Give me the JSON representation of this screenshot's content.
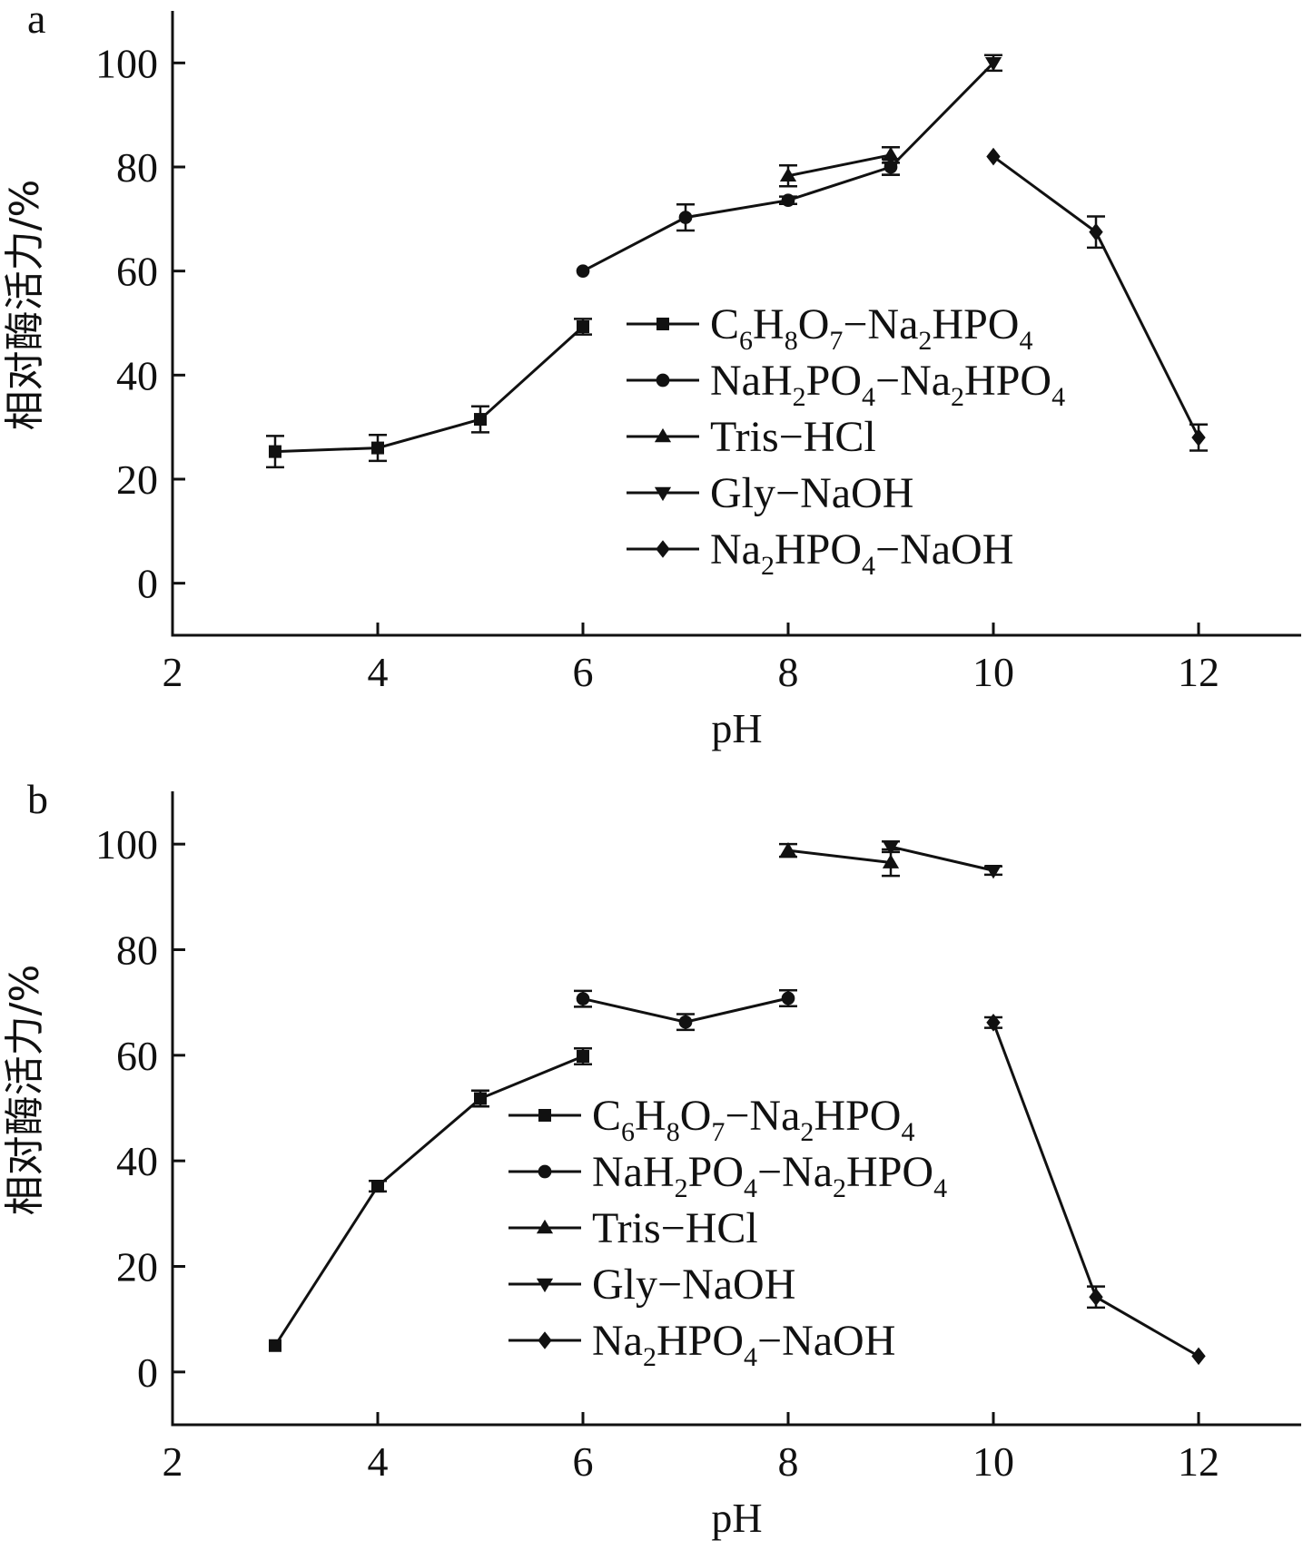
{
  "chart_data": [
    {
      "type": "line",
      "panel_label": "a",
      "xlabel": "pH",
      "ylabel": "相对酶活力/%",
      "xlim": [
        2,
        13
      ],
      "ylim": [
        -10,
        110
      ],
      "xticks": [
        2,
        4,
        6,
        8,
        10,
        12
      ],
      "yticks": [
        0,
        20,
        40,
        60,
        80,
        100
      ],
      "legend_position": "center",
      "series": [
        {
          "name": "C6H8O7-Na2HPO4",
          "label_parts": [
            [
              "C",
              ""
            ],
            [
              "6",
              "sub"
            ],
            [
              "H",
              ""
            ],
            [
              "8",
              "sub"
            ],
            [
              "O",
              ""
            ],
            [
              "7",
              "sub"
            ],
            [
              "−Na",
              ""
            ],
            [
              "2",
              "sub"
            ],
            [
              "HPO",
              ""
            ],
            [
              "4",
              "sub"
            ]
          ],
          "marker": "square",
          "points": [
            {
              "x": 3,
              "y": 25.3,
              "err": 3
            },
            {
              "x": 4,
              "y": 26,
              "err": 2.5
            },
            {
              "x": 5,
              "y": 31.5,
              "err": 2.5
            },
            {
              "x": 6,
              "y": 49.3,
              "err": 1.5
            }
          ]
        },
        {
          "name": "NaH2PO4-Na2HPO4",
          "label_parts": [
            [
              "NaH",
              ""
            ],
            [
              "2",
              "sub"
            ],
            [
              "PO",
              ""
            ],
            [
              "4",
              "sub"
            ],
            [
              "−Na",
              ""
            ],
            [
              "2",
              "sub"
            ],
            [
              "HPO",
              ""
            ],
            [
              "4",
              "sub"
            ]
          ],
          "marker": "circle",
          "points": [
            {
              "x": 6,
              "y": 60,
              "err": 0.5
            },
            {
              "x": 7,
              "y": 70.3,
              "err": 2.5
            },
            {
              "x": 8,
              "y": 73.6,
              "err": 0.7
            },
            {
              "x": 9,
              "y": 80,
              "err": 1.5
            }
          ]
        },
        {
          "name": "Tris-HCl",
          "label_parts": [
            [
              "Tris−HCl",
              ""
            ]
          ],
          "marker": "triangle-up",
          "points": [
            {
              "x": 8,
              "y": 78.3,
              "err": 2
            },
            {
              "x": 9,
              "y": 82.3,
              "err": 1.5
            }
          ]
        },
        {
          "name": "Gly-NaOH",
          "label_parts": [
            [
              "Gly−NaOH",
              ""
            ]
          ],
          "marker": "triangle-down",
          "points": [
            {
              "x": 9,
              "y": 80,
              "err": 1.5
            },
            {
              "x": 10,
              "y": 100,
              "err": 1.5
            }
          ]
        },
        {
          "name": "Na2HPO4-NaOH",
          "label_parts": [
            [
              "Na",
              ""
            ],
            [
              "2",
              "sub"
            ],
            [
              "HPO",
              ""
            ],
            [
              "4",
              "sub"
            ],
            [
              "−NaOH",
              ""
            ]
          ],
          "marker": "diamond",
          "points": [
            {
              "x": 10,
              "y": 82,
              "err": 0.5
            },
            {
              "x": 11,
              "y": 67.5,
              "err": 3
            },
            {
              "x": 12,
              "y": 28,
              "err": 2.5
            }
          ]
        }
      ]
    },
    {
      "type": "line",
      "panel_label": "b",
      "xlabel": "pH",
      "ylabel": "相对酶活力/%",
      "xlim": [
        2,
        13
      ],
      "ylim": [
        -10,
        110
      ],
      "xticks": [
        2,
        4,
        6,
        8,
        10,
        12
      ],
      "yticks": [
        0,
        20,
        40,
        60,
        80,
        100
      ],
      "legend_position": "center-left",
      "series": [
        {
          "name": "C6H8O7-Na2HPO4",
          "label_parts": [
            [
              "C",
              ""
            ],
            [
              "6",
              "sub"
            ],
            [
              "H",
              ""
            ],
            [
              "8",
              "sub"
            ],
            [
              "O",
              ""
            ],
            [
              "7",
              "sub"
            ],
            [
              "−Na",
              ""
            ],
            [
              "2",
              "sub"
            ],
            [
              "HPO",
              ""
            ],
            [
              "4",
              "sub"
            ]
          ],
          "marker": "square",
          "points": [
            {
              "x": 3,
              "y": 5,
              "err": 0.5
            },
            {
              "x": 4,
              "y": 35.2,
              "err": 1
            },
            {
              "x": 5,
              "y": 51.8,
              "err": 1.5
            },
            {
              "x": 6,
              "y": 59.8,
              "err": 1.5
            }
          ]
        },
        {
          "name": "NaH2PO4-Na2HPO4",
          "label_parts": [
            [
              "NaH",
              ""
            ],
            [
              "2",
              "sub"
            ],
            [
              "PO",
              ""
            ],
            [
              "4",
              "sub"
            ],
            [
              "−Na",
              ""
            ],
            [
              "2",
              "sub"
            ],
            [
              "HPO",
              ""
            ],
            [
              "4",
              "sub"
            ]
          ],
          "marker": "circle",
          "points": [
            {
              "x": 6,
              "y": 70.7,
              "err": 1.5
            },
            {
              "x": 7,
              "y": 66.3,
              "err": 1.5
            },
            {
              "x": 8,
              "y": 70.8,
              "err": 1.5
            }
          ]
        },
        {
          "name": "Tris-HCl",
          "label_parts": [
            [
              "Tris−HCl",
              ""
            ]
          ],
          "marker": "triangle-up",
          "points": [
            {
              "x": 8,
              "y": 98.8,
              "err": 1.2
            },
            {
              "x": 9,
              "y": 96.5,
              "err": 2.5
            }
          ]
        },
        {
          "name": "Gly-NaOH",
          "label_parts": [
            [
              "Gly−NaOH",
              ""
            ]
          ],
          "marker": "triangle-down",
          "points": [
            {
              "x": 9,
              "y": 99.5,
              "err": 1
            },
            {
              "x": 10,
              "y": 95,
              "err": 0.8
            }
          ]
        },
        {
          "name": "Na2HPO4-NaOH",
          "label_parts": [
            [
              "Na",
              ""
            ],
            [
              "2",
              "sub"
            ],
            [
              "HPO",
              ""
            ],
            [
              "4",
              "sub"
            ],
            [
              "−NaOH",
              ""
            ]
          ],
          "marker": "diamond",
          "points": [
            {
              "x": 10,
              "y": 66.2,
              "err": 1
            },
            {
              "x": 11,
              "y": 14.2,
              "err": 2
            },
            {
              "x": 12,
              "y": 3,
              "err": 0.5
            }
          ]
        }
      ]
    }
  ]
}
